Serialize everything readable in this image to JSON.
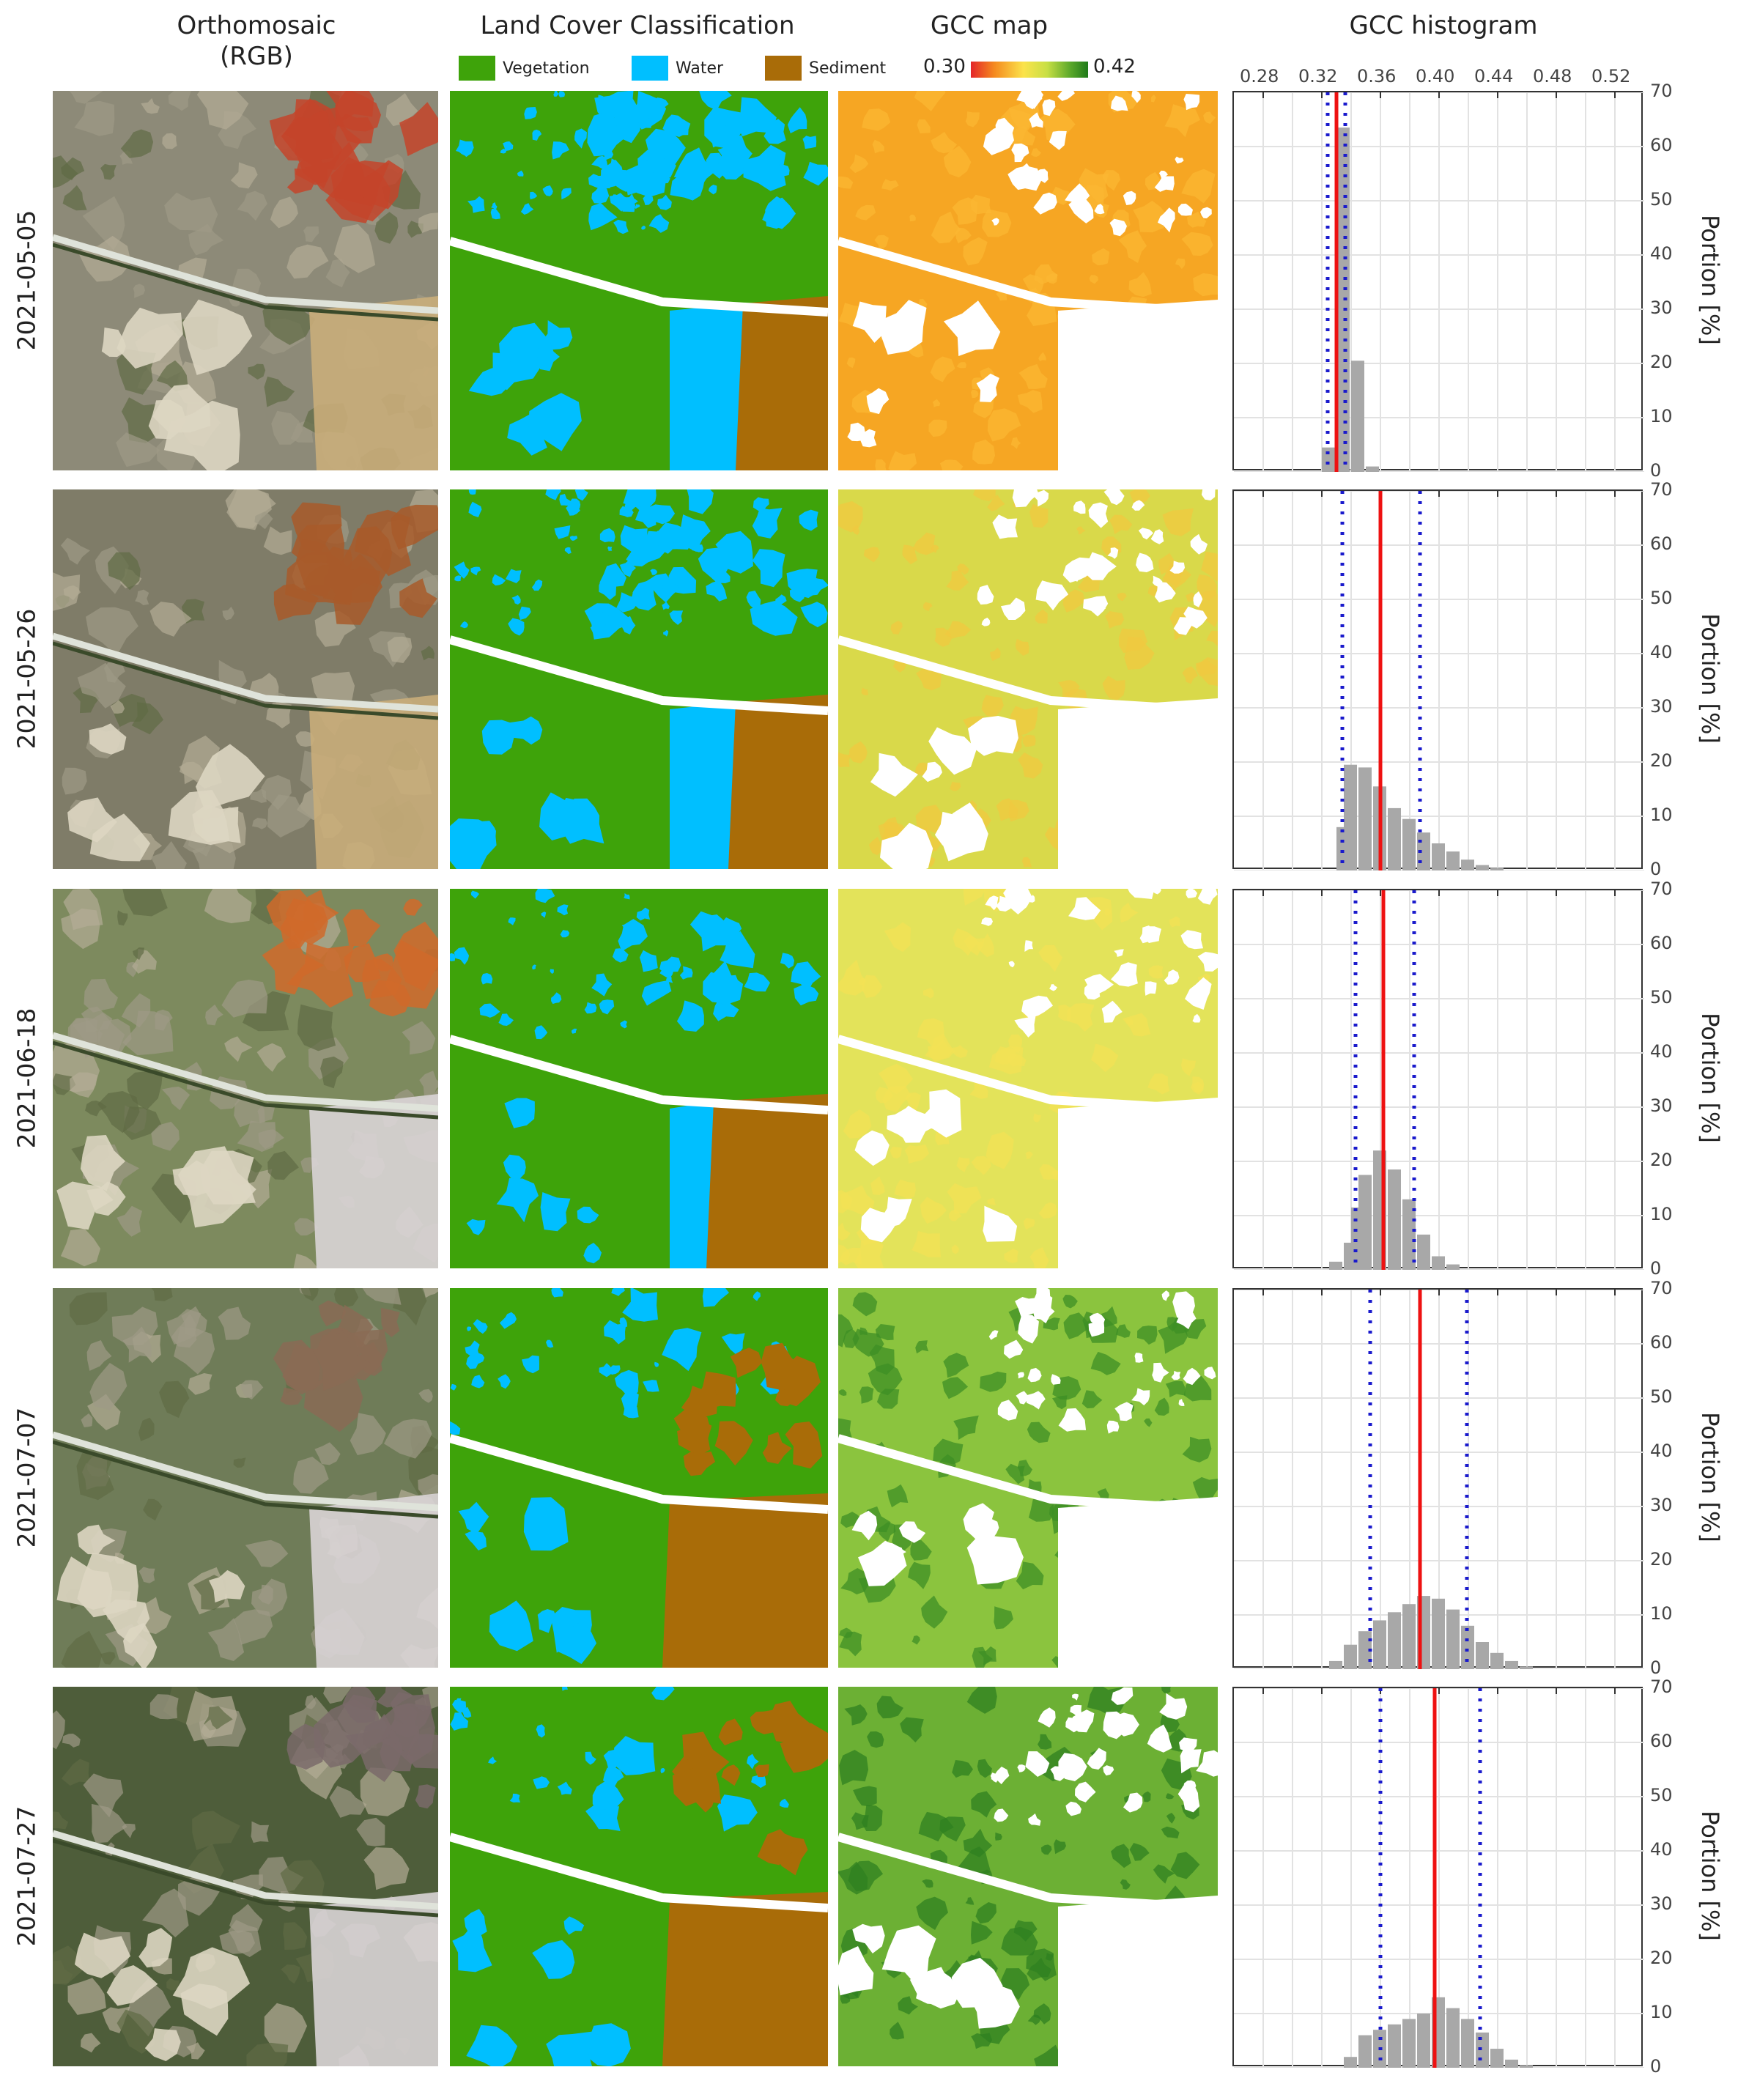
{
  "headers": {
    "ortho": "Orthomosaic\n(RGB)",
    "landcover": "Land Cover Classification",
    "gcc_map": "GCC map",
    "gcc_hist": "GCC histogram"
  },
  "landcover_legend": [
    {
      "label": "Vegetation",
      "color": "#3ea30a"
    },
    {
      "label": "Water",
      "color": "#00bfff"
    },
    {
      "label": "Sediment",
      "color": "#a96c08"
    }
  ],
  "colorbar": {
    "min_label": "0.30",
    "max_label": "0.42"
  },
  "dates": [
    "2021-05-05",
    "2021-05-26",
    "2021-06-18",
    "2021-07-07",
    "2021-07-27"
  ],
  "colors": {
    "bar": "#a8a8a8",
    "mean_line": "#ee1111",
    "sd_line": "#1a1acc",
    "vegetation": "#3ea30a",
    "water": "#00bfff",
    "sediment": "#a96c08"
  },
  "chart_data": {
    "type": "bar",
    "title": "GCC histogram",
    "xlabel": "",
    "ylabel": "Portion [%]",
    "xlim": [
      0.26,
      0.54
    ],
    "ylim": [
      0,
      70
    ],
    "x_ticks": [
      "0.28",
      "0.32",
      "0.36",
      "0.40",
      "0.44",
      "0.48",
      "0.52"
    ],
    "y_ticks": [
      "0",
      "10",
      "20",
      "30",
      "40",
      "50",
      "60",
      "70"
    ],
    "bin_width": 0.01,
    "grid": true,
    "panels": [
      {
        "date": "2021-05-05",
        "bins": [
          [
            0.32,
            4.5
          ],
          [
            0.33,
            63.5
          ],
          [
            0.34,
            20.5
          ],
          [
            0.35,
            1
          ]
        ],
        "mean": 0.33,
        "sd_low": 0.324,
        "sd_high": 0.336
      },
      {
        "date": "2021-05-26",
        "bins": [
          [
            0.33,
            8
          ],
          [
            0.335,
            19.5
          ],
          [
            0.345,
            19
          ],
          [
            0.355,
            15.5
          ],
          [
            0.365,
            11.5
          ],
          [
            0.375,
            9.5
          ],
          [
            0.385,
            7
          ],
          [
            0.395,
            5
          ],
          [
            0.405,
            3.5
          ],
          [
            0.415,
            2
          ],
          [
            0.425,
            1
          ],
          [
            0.435,
            0.5
          ]
        ],
        "mean": 0.36,
        "sd_low": 0.334,
        "sd_high": 0.387
      },
      {
        "date": "2021-06-18",
        "bins": [
          [
            0.325,
            1.5
          ],
          [
            0.335,
            5
          ],
          [
            0.34,
            11.5
          ],
          [
            0.345,
            17.5
          ],
          [
            0.355,
            22
          ],
          [
            0.365,
            18.5
          ],
          [
            0.375,
            13
          ],
          [
            0.385,
            6.5
          ],
          [
            0.395,
            2.5
          ],
          [
            0.405,
            1
          ]
        ],
        "mean": 0.362,
        "sd_low": 0.343,
        "sd_high": 0.383
      },
      {
        "date": "2021-07-07",
        "bins": [
          [
            0.325,
            1.5
          ],
          [
            0.335,
            4.5
          ],
          [
            0.345,
            7
          ],
          [
            0.355,
            9
          ],
          [
            0.365,
            10.5
          ],
          [
            0.375,
            12
          ],
          [
            0.385,
            13.5
          ],
          [
            0.395,
            13
          ],
          [
            0.405,
            11
          ],
          [
            0.415,
            8
          ],
          [
            0.425,
            5
          ],
          [
            0.435,
            3
          ],
          [
            0.445,
            1.5
          ],
          [
            0.455,
            0.5
          ]
        ],
        "mean": 0.387,
        "sd_low": 0.353,
        "sd_high": 0.419
      },
      {
        "date": "2021-07-27",
        "bins": [
          [
            0.335,
            2
          ],
          [
            0.345,
            6
          ],
          [
            0.355,
            7
          ],
          [
            0.365,
            8
          ],
          [
            0.375,
            9
          ],
          [
            0.385,
            10
          ],
          [
            0.395,
            13
          ],
          [
            0.405,
            11
          ],
          [
            0.415,
            9
          ],
          [
            0.425,
            6.5
          ],
          [
            0.435,
            3.5
          ],
          [
            0.445,
            1.5
          ],
          [
            0.455,
            0.5
          ]
        ],
        "mean": 0.397,
        "sd_low": 0.36,
        "sd_high": 0.428
      }
    ]
  }
}
